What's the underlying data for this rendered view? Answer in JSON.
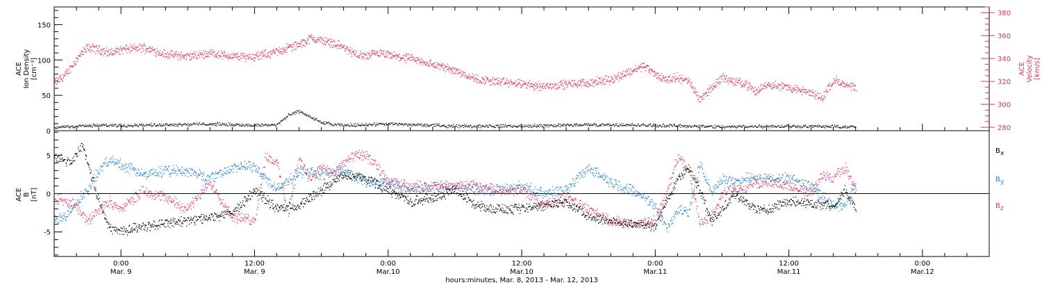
{
  "chart_data": [
    {
      "type": "scatter",
      "panel": "top",
      "left_axis_label": [
        "ACE",
        "Ion Density",
        "[cm⁻³]"
      ],
      "right_axis_label": [
        "ACE",
        "Velocity",
        "[km/s]"
      ],
      "left_ylim": [
        0,
        175
      ],
      "left_yticks": [
        0,
        50,
        100,
        150
      ],
      "right_ylim": [
        277,
        385
      ],
      "right_yticks": [
        280,
        300,
        320,
        340,
        360,
        380
      ],
      "x_range_hours": [
        -6,
        78
      ],
      "data_range_hours": [
        -6,
        66
      ],
      "colors": {
        "density": "#000000",
        "velocity": "#e0315f"
      },
      "series": [
        {
          "axis": "right",
          "color": "#e0315f",
          "x": [
            -6,
            -5,
            -4,
            -3,
            -2,
            -1,
            0,
            2,
            4,
            6,
            8,
            10,
            12,
            14,
            15,
            16,
            17,
            18,
            19,
            20,
            21,
            22,
            23,
            24,
            26,
            28,
            30,
            32,
            34,
            36,
            38,
            40,
            42,
            44,
            46,
            47,
            48,
            49,
            50,
            51,
            52,
            54,
            55,
            56,
            57,
            58,
            60,
            62,
            63,
            64,
            65,
            66
          ],
          "values": [
            319,
            326,
            340,
            350,
            348,
            345,
            348,
            350,
            344,
            342,
            345,
            342,
            342,
            346,
            350,
            352,
            358,
            356,
            354,
            350,
            344,
            342,
            345,
            343,
            340,
            335,
            330,
            322,
            320,
            318,
            316,
            318,
            319,
            322,
            330,
            334,
            326,
            322,
            324,
            320,
            305,
            324,
            320,
            319,
            311,
            318,
            315,
            310,
            306,
            322,
            317,
            314
          ]
        },
        {
          "axis": "left",
          "color": "#000000",
          "x": [
            -6,
            -4,
            -2,
            0,
            4,
            8,
            12,
            14,
            15,
            16,
            17,
            18,
            19,
            20,
            24,
            30,
            36,
            42,
            48,
            54,
            60,
            66
          ],
          "values": [
            5,
            7,
            8,
            8,
            9,
            10,
            8,
            9,
            22,
            28,
            20,
            12,
            9,
            8,
            10,
            7,
            7,
            9,
            8,
            6,
            7,
            6
          ]
        }
      ]
    },
    {
      "type": "scatter",
      "panel": "bottom",
      "left_axis_label": [
        "ACE",
        "B",
        "[nT]"
      ],
      "ylim": [
        -8.2,
        8.2
      ],
      "yticks": [
        -5,
        0,
        5
      ],
      "x_range_hours": [
        -6,
        78
      ],
      "xticks": [
        {
          "hour": 0,
          "time": "0:00",
          "date": "Mar. 9"
        },
        {
          "hour": 12,
          "time": "12:00",
          "date": "Mar. 9"
        },
        {
          "hour": 24,
          "time": "0:00",
          "date": "Mar.10"
        },
        {
          "hour": 36,
          "time": "12:00",
          "date": "Mar.10"
        },
        {
          "hour": 48,
          "time": "0:00",
          "date": "Mar.11"
        },
        {
          "hour": 60,
          "time": "12:00",
          "date": "Mar.11"
        },
        {
          "hour": 72,
          "time": "0:00",
          "date": "Mar.12"
        }
      ],
      "xlabel": "hours:minutes, Mar.  8, 2013 - Mar. 12, 2013",
      "legend": [
        {
          "label": "B",
          "sub": "x",
          "color": "#000000"
        },
        {
          "label": "B",
          "sub": "y",
          "color": "#1a7fd8"
        },
        {
          "label": "B",
          "sub": "z",
          "color": "#e0315f"
        }
      ],
      "series": [
        {
          "name": "Bx",
          "color": "#000000",
          "x": [
            -6,
            -4.5,
            -3.5,
            -2,
            -1,
            0,
            2,
            4,
            6,
            8,
            10,
            12,
            14,
            16,
            18,
            20,
            22,
            24,
            26,
            28,
            30,
            32,
            34,
            36,
            38,
            40,
            42,
            44,
            46,
            48,
            49,
            50,
            51,
            52,
            53,
            54,
            55,
            56,
            57,
            58,
            60,
            62,
            64,
            65,
            66
          ],
          "values": [
            4.8,
            4.0,
            6.5,
            -1,
            -4.5,
            -4.8,
            -4.2,
            -3.8,
            -3.5,
            -3.0,
            -2.5,
            0.5,
            -2.0,
            -1.5,
            0.5,
            2.5,
            2.0,
            0.5,
            -1.0,
            -0.5,
            0.5,
            -1.5,
            -2.0,
            -2.0,
            -1.5,
            -1.0,
            -3.0,
            -3.5,
            -4.0,
            -4.2,
            -1.0,
            2.0,
            3.5,
            0.5,
            -3.5,
            -2.0,
            0.0,
            -1.0,
            -2.0,
            -2.0,
            -1.0,
            -1.2,
            -1.5,
            0.5,
            -2.0
          ]
        },
        {
          "name": "By",
          "color": "#1a7fd8",
          "x": [
            -6,
            -5,
            -4,
            -3,
            -2,
            -1,
            0,
            2,
            4,
            6,
            8,
            10,
            12,
            14,
            16,
            18,
            20,
            22,
            24,
            26,
            28,
            30,
            32,
            34,
            36,
            38,
            40,
            42,
            44,
            46,
            48,
            49,
            50,
            51,
            52,
            53,
            54,
            55,
            56,
            57,
            58,
            60,
            62,
            64,
            65,
            66
          ],
          "values": [
            -3.5,
            -3.0,
            -1.0,
            0.5,
            3.0,
            4.5,
            3.8,
            2.5,
            3.0,
            3.0,
            2.0,
            3.5,
            3.5,
            0.5,
            3.0,
            2.5,
            3.0,
            1.5,
            1.5,
            0.5,
            0.8,
            1.0,
            0.5,
            0.5,
            1.0,
            0.0,
            0.5,
            3.5,
            1.5,
            0.5,
            -1.5,
            -4.5,
            -2.0,
            -2.5,
            4.0,
            0.0,
            2.0,
            1.5,
            2.0,
            2.0,
            2.0,
            2.0,
            1.0,
            -1.5,
            -1.5,
            1.5
          ]
        },
        {
          "name": "Bz",
          "color": "#e0315f",
          "x": [
            -6,
            -5,
            -4,
            -3,
            -2,
            -1,
            0,
            2,
            4,
            6,
            8,
            10,
            12,
            13,
            14,
            15,
            16,
            17,
            18,
            19,
            20,
            21,
            22,
            23,
            24,
            26,
            28,
            30,
            32,
            34,
            36,
            38,
            40,
            42,
            44,
            46,
            48,
            49,
            50,
            51,
            52,
            53,
            54,
            55,
            56,
            57,
            58,
            60,
            62,
            63,
            64,
            65,
            66
          ],
          "values": [
            -0.5,
            -1.0,
            -1.5,
            -3.5,
            -2.0,
            -1.0,
            -2.0,
            0.5,
            -0.5,
            -2.0,
            1.5,
            -3.0,
            -3.5,
            5.0,
            4.0,
            -2.5,
            4.5,
            2.0,
            3.5,
            2.5,
            4.0,
            5.0,
            5.0,
            3.5,
            1.5,
            1.0,
            1.0,
            1.0,
            1.0,
            0.5,
            0.5,
            -1.5,
            -0.5,
            -2.0,
            -3.5,
            -4.0,
            -3.5,
            0.0,
            5.0,
            3.0,
            -4.0,
            -3.0,
            0.0,
            1.0,
            0.5,
            1.5,
            1.5,
            1.0,
            0.0,
            2.5,
            2.0,
            3.5,
            0.5
          ]
        }
      ]
    }
  ]
}
